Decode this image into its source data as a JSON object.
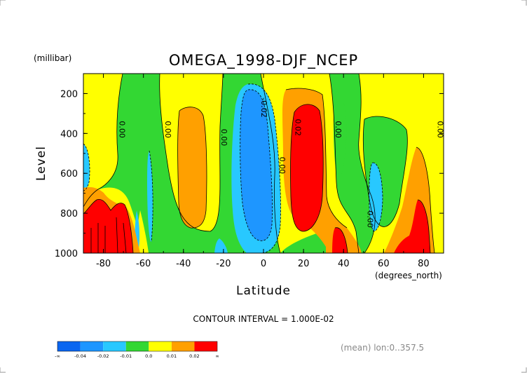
{
  "chart_data": {
    "type": "heatmap",
    "title": "OMEGA_1998-DJF_NCEP",
    "ylabel": "Level",
    "yunit": "(millibar)",
    "xlabel": "Latitude",
    "xunit": "(degrees_north)",
    "xlim": [
      -90,
      90
    ],
    "ylim": [
      1000,
      100
    ],
    "y_reversed": true,
    "x_ticks": [
      -80,
      -60,
      -40,
      -20,
      0,
      20,
      40,
      60,
      80
    ],
    "y_ticks": [
      200,
      400,
      600,
      800,
      1000
    ],
    "grid": false,
    "levels": [
      -0.04,
      -0.02,
      -0.01,
      0.0,
      0.01,
      0.02
    ],
    "colorbar": {
      "labels": [
        "-∞",
        "-0.04",
        "-0.02",
        "-0.01",
        "0.0",
        "0.01",
        "0.02",
        "∞"
      ],
      "colors": [
        "#0b66f0",
        "#1e96ff",
        "#28c8ff",
        "#33d733",
        "#ffff00",
        "#ffa000",
        "#ff0000"
      ]
    },
    "contour_labels": [
      {
        "text": "0.00",
        "lat": -72,
        "lev": 380
      },
      {
        "text": "0.00",
        "lat": -49,
        "lev": 380
      },
      {
        "text": "0.00",
        "lat": -21,
        "lev": 420
      },
      {
        "text": "-0.02",
        "lat": -1,
        "lev": 270
      },
      {
        "text": "0.00",
        "lat": 8,
        "lev": 560
      },
      {
        "text": "0.02",
        "lat": 16,
        "lev": 370
      },
      {
        "text": "0.00",
        "lat": 36,
        "lev": 380
      },
      {
        "text": "0.00",
        "lat": 52,
        "lev": 830
      },
      {
        "text": "0.00",
        "lat": 87,
        "lev": 380
      }
    ],
    "contour_interval": "CONTOUR INTERVAL = 1.000E-02",
    "footnote": "(mean) lon:0..357.5"
  }
}
